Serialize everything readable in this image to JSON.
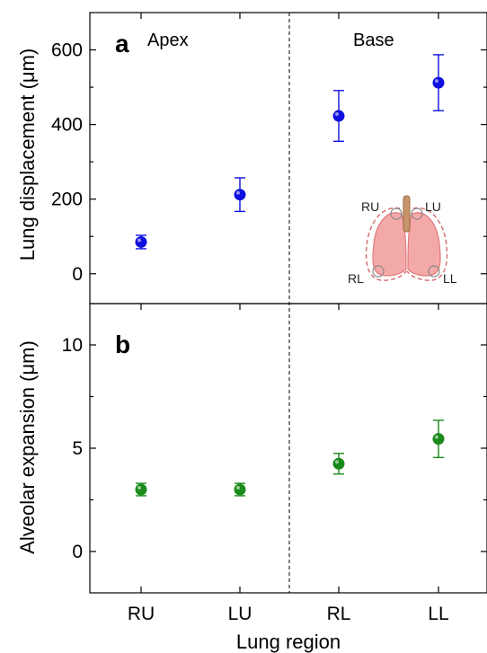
{
  "chart_data": {
    "type": "scatter",
    "categories": [
      "RU",
      "LU",
      "RL",
      "LL"
    ],
    "xlabel": "Lung region",
    "divider_after_index": 1,
    "colors": {
      "panel_a": "#1010e0",
      "panel_b": "#1a8a1a"
    },
    "panels": [
      {
        "letter": "a",
        "ylabel": "Lung displacement (μm)",
        "ylim": [
          -80,
          700
        ],
        "yticks": [
          0,
          200,
          400,
          600
        ],
        "ytick_labels": [
          "0",
          "200",
          "400",
          "600"
        ],
        "region_labels": [
          "Apex",
          "Base"
        ],
        "values": [
          85,
          212,
          423,
          512
        ],
        "errors": [
          18,
          45,
          68,
          75
        ],
        "inset": {
          "labels": [
            "RU",
            "LU",
            "RL",
            "LL"
          ]
        }
      },
      {
        "letter": "b",
        "ylabel": "Alveolar expansion (μm)",
        "ylim": [
          -2,
          12
        ],
        "yticks": [
          0,
          5,
          10
        ],
        "ytick_labels": [
          "0",
          "5",
          "10"
        ],
        "values": [
          3.0,
          3.0,
          4.25,
          5.45
        ],
        "errors": [
          0.3,
          0.3,
          0.5,
          0.9
        ]
      }
    ]
  }
}
